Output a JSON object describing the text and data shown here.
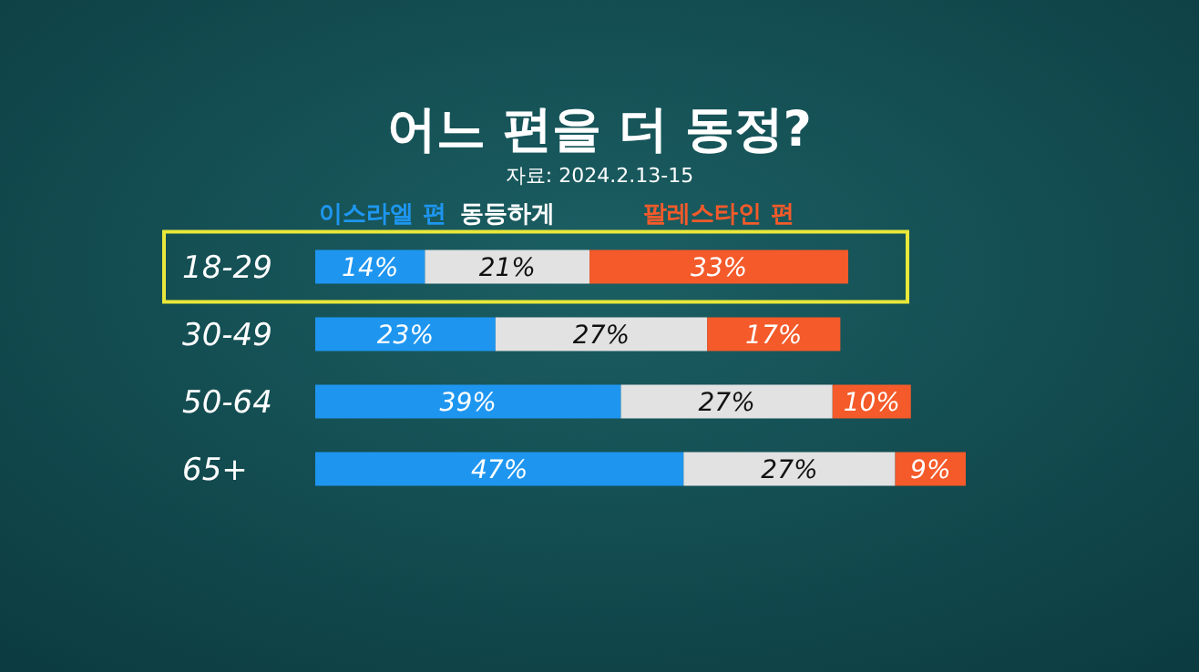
{
  "chart_data": {
    "type": "bar",
    "orientation": "horizontal",
    "stacked": true,
    "title": "어느 편을 더 동정?",
    "subtitle": "자료: 2024.2.13-15",
    "categories": [
      "18-29",
      "30-49",
      "50-64",
      "65+"
    ],
    "series": [
      {
        "name": "이스라엘 편",
        "color": "#1e96f0",
        "values": [
          14,
          23,
          39,
          47
        ],
        "value_labels": [
          "14%",
          "23%",
          "39%",
          "47%"
        ]
      },
      {
        "name": "동등하게",
        "color": "#e2e2e2",
        "values": [
          21,
          27,
          27,
          27
        ],
        "value_labels": [
          "21%",
          "27%",
          "27%",
          "27%"
        ]
      },
      {
        "name": "팔레스타인 편",
        "color": "#f45a2a",
        "values": [
          33,
          17,
          10,
          9
        ],
        "value_labels": [
          "33%",
          "17%",
          "10%",
          "9%"
        ]
      }
    ],
    "legend": "top left"
  }
}
